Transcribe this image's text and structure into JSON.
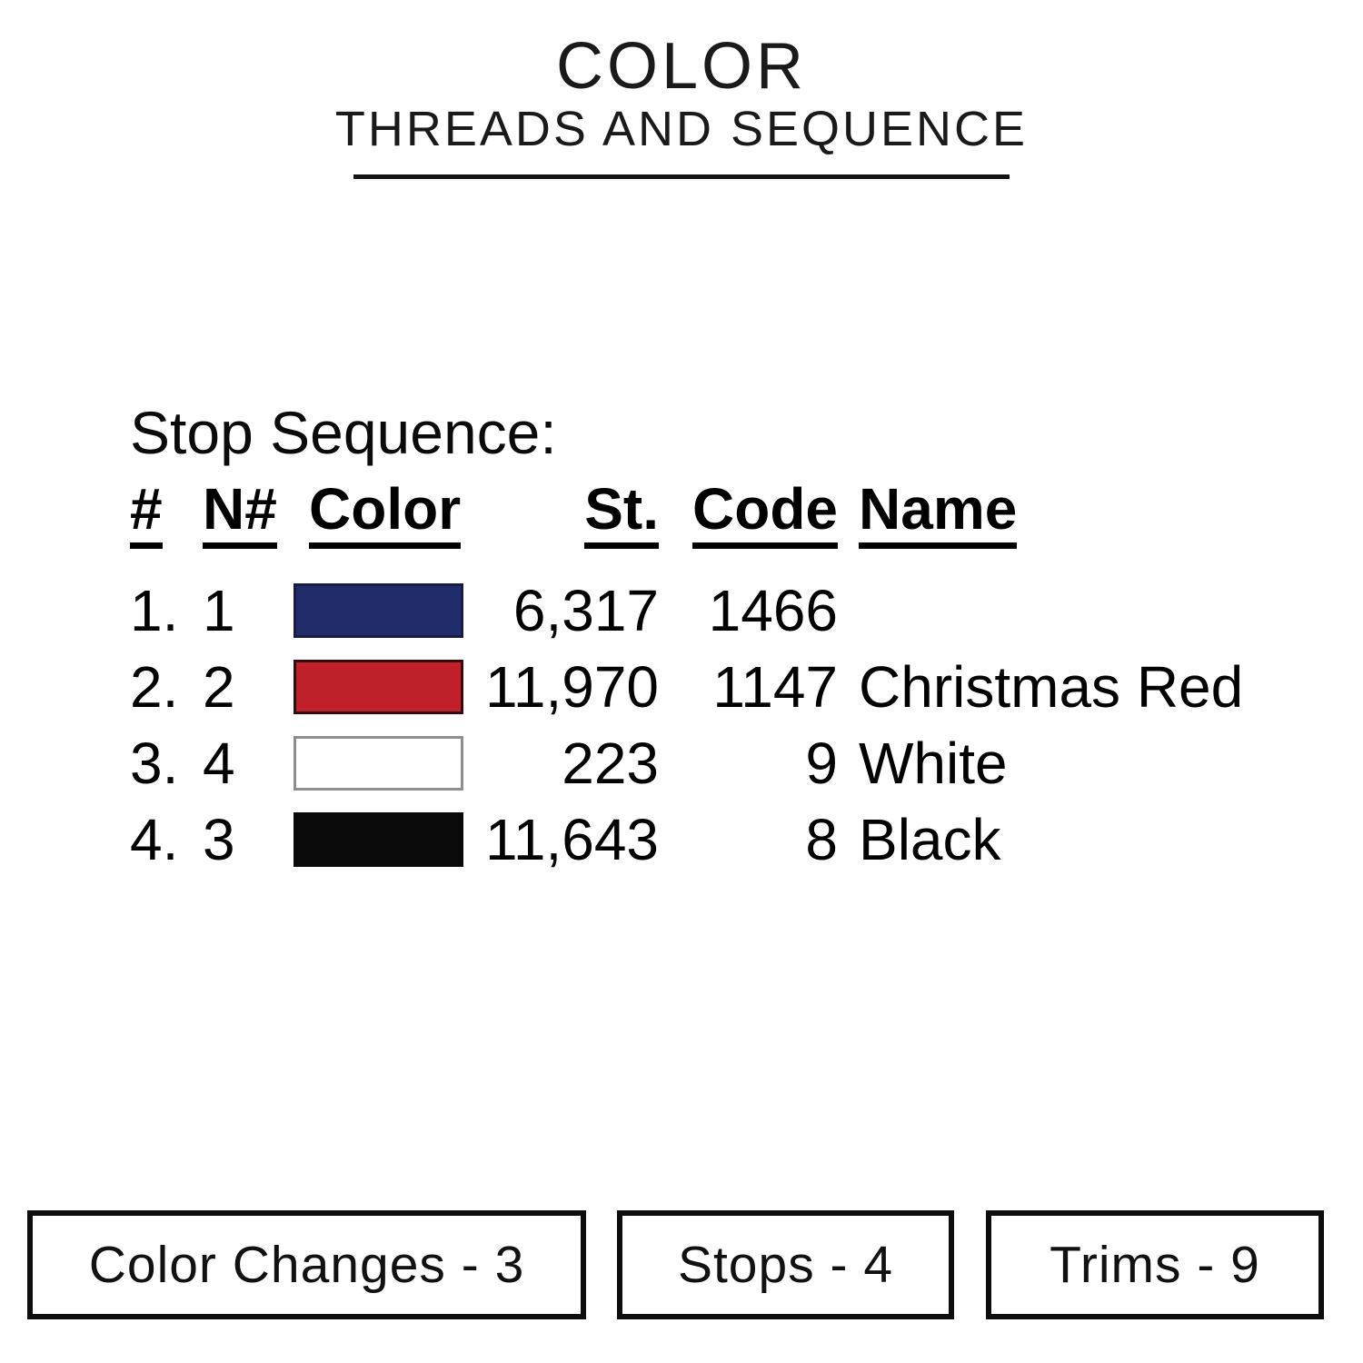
{
  "header": {
    "title": "COLOR",
    "subtitle": "THREADS AND SEQUENCE"
  },
  "stop_sequence": {
    "heading": "Stop Sequence:",
    "columns": {
      "num": "#",
      "needle": "N#",
      "color": "Color",
      "stitches": "St.",
      "code": "Code",
      "name": "Name"
    },
    "rows": [
      {
        "num": "1.",
        "needle": "1",
        "swatch": {
          "fill": "#232C6B",
          "border": "#181C45"
        },
        "stitches": "6,317",
        "code": "1466",
        "name": ""
      },
      {
        "num": "2.",
        "needle": "2",
        "swatch": {
          "fill": "#C0202A",
          "border": "#330A0E"
        },
        "stitches": "11,970",
        "code": "1147",
        "name": "Christmas Red"
      },
      {
        "num": "3.",
        "needle": "4",
        "swatch": {
          "fill": "#FFFFFF",
          "border": "#8E8E8E"
        },
        "stitches": "223",
        "code": "9",
        "name": "White"
      },
      {
        "num": "4.",
        "needle": "3",
        "swatch": {
          "fill": "#0A0A0A",
          "border": "#0A0A0A"
        },
        "stitches": "11,643",
        "code": "8",
        "name": "Black"
      }
    ]
  },
  "summary": {
    "color_changes": "Color Changes - 3",
    "stops": "Stops - 4",
    "trims": "Trims - 9"
  }
}
